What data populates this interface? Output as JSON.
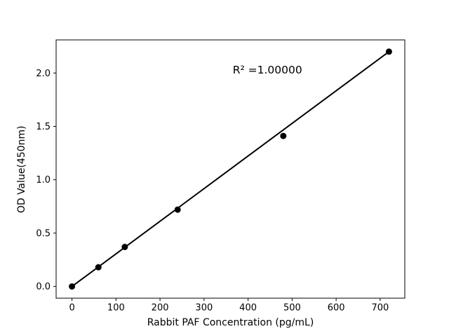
{
  "figure": {
    "background": "#ffffff",
    "foreground": "#000000"
  },
  "chart_data": {
    "type": "scatter",
    "title": "",
    "xlabel": "Rabbit PAF Concentration (pg/mL)",
    "ylabel": "OD Value(450nm)",
    "x": [
      0,
      60,
      120,
      240,
      480,
      720
    ],
    "y": [
      0.0,
      0.18,
      0.37,
      0.72,
      1.41,
      2.2
    ],
    "fit_line": {
      "x": [
        0,
        720
      ],
      "y": [
        0.0,
        2.2
      ]
    },
    "annotation": {
      "text": "R² =1.00000",
      "x": 444,
      "y": 2.03
    },
    "x_ticks": [
      "0",
      "100",
      "200",
      "300",
      "400",
      "500",
      "600",
      "700"
    ],
    "y_ticks": [
      "0.0",
      "0.5",
      "1.0",
      "1.5",
      "2.0"
    ],
    "xlim": [
      -36,
      756
    ],
    "ylim": [
      -0.11,
      2.31
    ],
    "grid": false,
    "legend": null,
    "marker_color": "#000000",
    "line_color": "#000000",
    "marker_radius": 4.5,
    "line_width": 2
  }
}
